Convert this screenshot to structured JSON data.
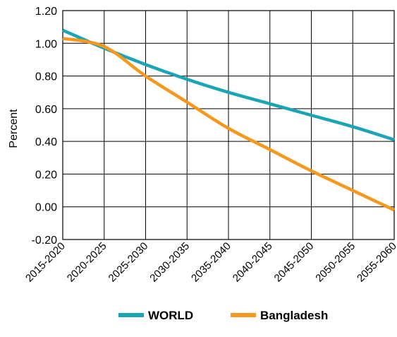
{
  "chart_data": {
    "type": "line",
    "title": "",
    "xlabel": "",
    "ylabel": "Percent",
    "ylim": [
      -0.2,
      1.2
    ],
    "yticks": [
      "1.20",
      "1.00",
      "0.80",
      "0.60",
      "0.40",
      "0.20",
      "0.00",
      "-0.20"
    ],
    "categories": [
      "2015-2020",
      "2020-2025",
      "2025-2030",
      "2030-2035",
      "2035-2040",
      "2040-2045",
      "2045-2050",
      "2050-2055",
      "2055-2060"
    ],
    "grid": true,
    "legend_position": "bottom",
    "series": [
      {
        "name": "WORLD",
        "color": "#1aa5b5",
        "values": [
          1.08,
          0.97,
          0.87,
          0.78,
          0.7,
          0.63,
          0.56,
          0.49,
          0.41
        ]
      },
      {
        "name": "Bangladesh",
        "color": "#f7981d",
        "values": [
          1.03,
          0.98,
          0.8,
          0.64,
          0.48,
          0.35,
          0.22,
          0.1,
          -0.02
        ]
      }
    ]
  }
}
